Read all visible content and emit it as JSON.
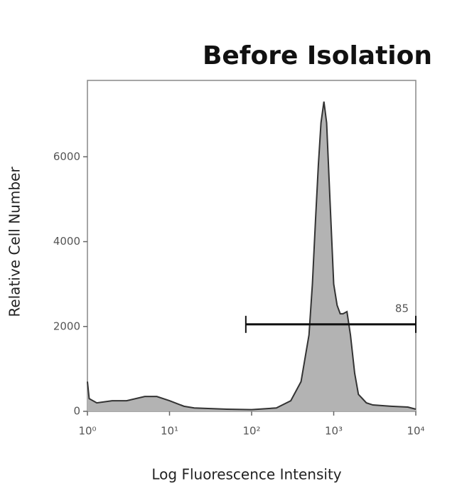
{
  "chart_data": {
    "type": "area",
    "title": "Before Isolation",
    "xlabel": "Log Fluorescence Intensity",
    "ylabel": "Relative Cell Number",
    "xscale": "log",
    "xlim": [
      1,
      10000
    ],
    "xticks": [
      {
        "value": 1,
        "label": "10⁰"
      },
      {
        "value": 10,
        "label": "10¹"
      },
      {
        "value": 100,
        "label": "10²"
      },
      {
        "value": 1000,
        "label": "10³"
      },
      {
        "value": 10000,
        "label": "10⁴"
      }
    ],
    "ylim": [
      0,
      7800
    ],
    "yticks": [
      0,
      2000,
      4000,
      6000
    ],
    "color": "#b3b3b3",
    "line_color": "#333333",
    "x": [
      1,
      1.05,
      1.3,
      2,
      3,
      5,
      7,
      10,
      15,
      20,
      50,
      100,
      200,
      300,
      400,
      500,
      550,
      600,
      650,
      700,
      760,
      820,
      900,
      1000,
      1100,
      1200,
      1300,
      1450,
      1600,
      1800,
      2000,
      2500,
      3000,
      5000,
      8000,
      10000
    ],
    "values": [
      700,
      300,
      200,
      250,
      250,
      350,
      350,
      250,
      120,
      80,
      50,
      40,
      80,
      250,
      700,
      1800,
      3000,
      4500,
      5800,
      6800,
      7300,
      6800,
      5000,
      3000,
      2500,
      2300,
      2300,
      2350,
      1800,
      900,
      400,
      200,
      150,
      120,
      100,
      50
    ],
    "gate": {
      "x": [
        85,
        10000
      ],
      "y": 2050,
      "label": "85"
    }
  }
}
